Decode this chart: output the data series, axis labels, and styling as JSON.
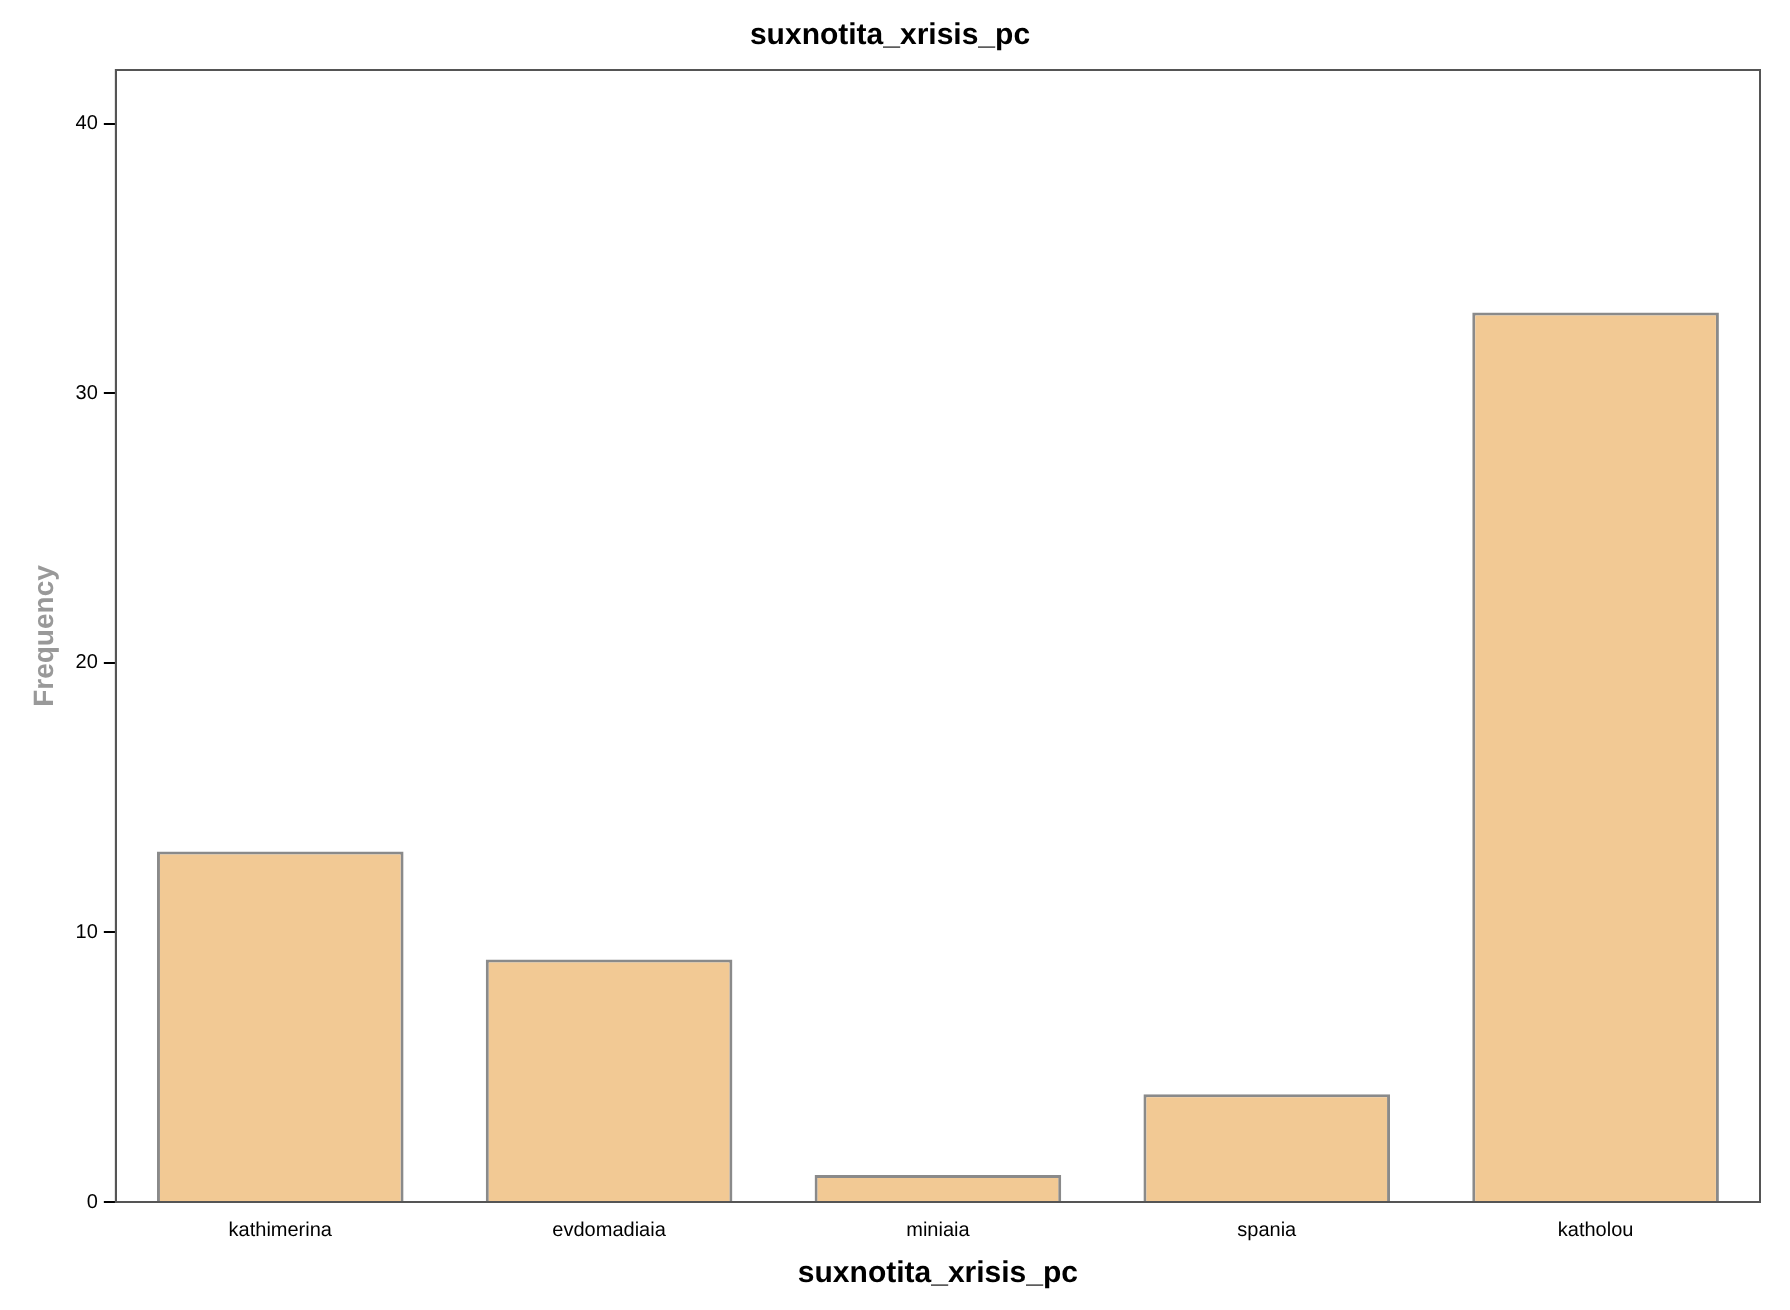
{
  "chart_data": {
    "type": "bar",
    "title": "suxnotita_xrisis_pc",
    "xlabel": "suxnotita_xrisis_pc",
    "ylabel": "Frequency",
    "categories": [
      "kathimerina",
      "evdomadiaia",
      "miniaia",
      "spania",
      "katholou"
    ],
    "values": [
      13,
      9,
      1,
      4,
      33
    ],
    "color": "#f2c994",
    "ylim": [
      0,
      42
    ],
    "yticks": [
      0,
      10,
      20,
      30,
      40
    ],
    "grid": false,
    "legend": false
  }
}
